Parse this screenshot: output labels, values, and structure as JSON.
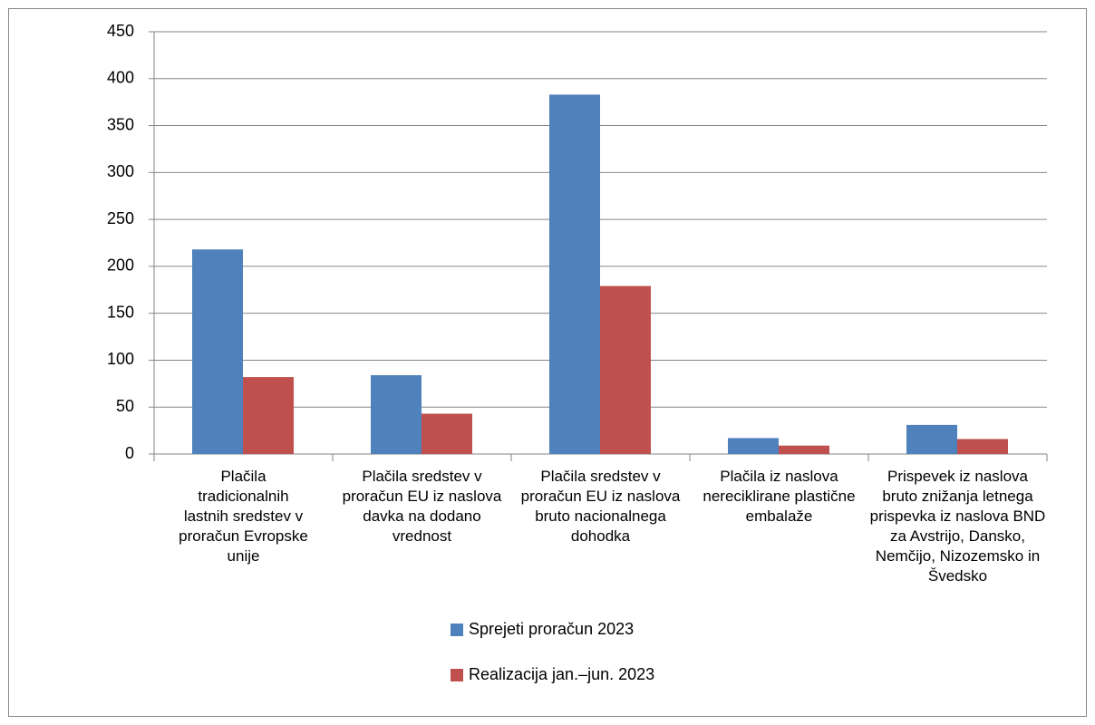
{
  "chart_data": {
    "type": "bar",
    "categories": [
      "Plačila tradicionalnih lastnih sredstev v proračun Evropske unije",
      "Plačila sredstev v proračun EU iz naslova davka na dodano vrednost",
      "Plačila sredstev v proračun EU iz naslova bruto nacionalnega dohodka",
      "Plačila iz naslova nereciklirane plastične embalaže",
      "Prispevek iz naslova bruto znižanja letnega prispevka iz naslova BND za Avstrijo, Dansko, Nemčijo, Nizozemsko in Švedsko"
    ],
    "series": [
      {
        "name": "Sprejeti proračun 2023",
        "color": "#4f81bd",
        "values": [
          218,
          84,
          383,
          17,
          31
        ]
      },
      {
        "name": "Realizacija jan.–jun. 2023",
        "color": "#c0504d",
        "values": [
          82,
          43,
          179,
          9,
          16
        ]
      }
    ],
    "ylim": [
      0,
      450
    ],
    "yticks": [
      0,
      50,
      100,
      150,
      200,
      250,
      300,
      350,
      400,
      450
    ],
    "grid": true,
    "legend": "bottom"
  }
}
